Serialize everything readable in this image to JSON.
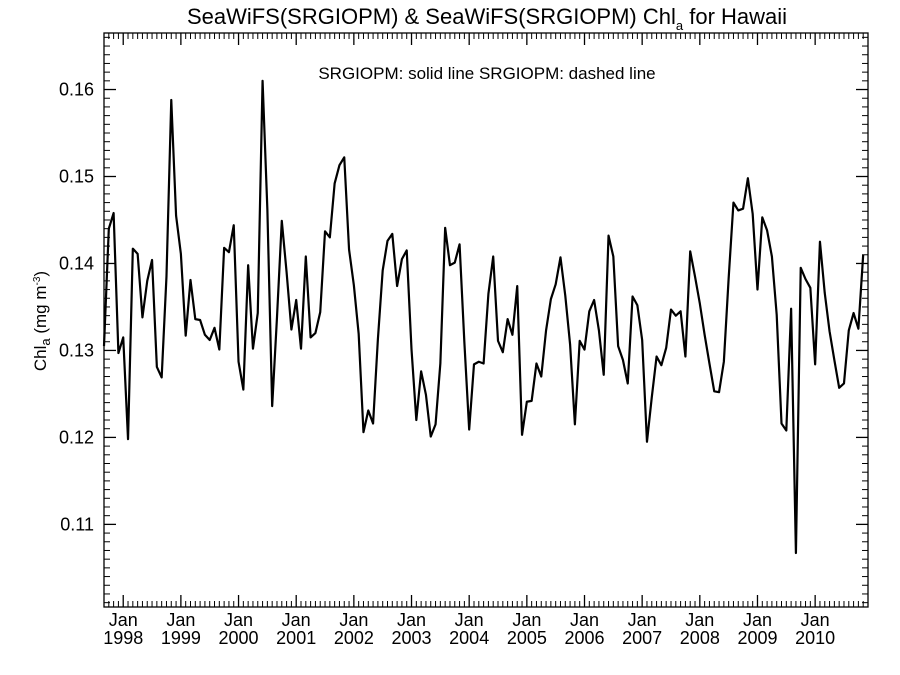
{
  "chart_data": {
    "type": "line",
    "title": {
      "main": "SeaWiFS(SRGIOPM) & SeaWiFS(SRGIOPM)  Chl",
      "subscript": "a",
      "suffix": " for Hawaii"
    },
    "legend_text": "SRGIOPM: solid line   SRGIOPM: dashed line",
    "ylabel": {
      "prefix": "Chl",
      "subscript": "a",
      "units": " (mg m",
      "superscript": "-3",
      "close": ")"
    },
    "ylim": [
      0.1005,
      0.1665
    ],
    "y_ticks": [
      0.11,
      0.12,
      0.13,
      0.14,
      0.15,
      0.16
    ],
    "y_tick_labels": [
      "0.11",
      "0.12",
      "0.13",
      "0.14",
      "0.15",
      "0.16"
    ],
    "xlim": [
      "1997-09",
      "2010-12"
    ],
    "x_ticks": [
      "1998-01",
      "1999-01",
      "2000-01",
      "2001-01",
      "2002-01",
      "2003-01",
      "2004-01",
      "2005-01",
      "2006-01",
      "2007-01",
      "2008-01",
      "2009-01",
      "2010-01"
    ],
    "x_tick_month_labels": [
      "Jan",
      "Jan",
      "Jan",
      "Jan",
      "Jan",
      "Jan",
      "Jan",
      "Jan",
      "Jan",
      "Jan",
      "Jan",
      "Jan",
      "Jan"
    ],
    "x_tick_year_labels": [
      "1998",
      "1999",
      "2000",
      "2001",
      "2002",
      "2003",
      "2004",
      "2005",
      "2006",
      "2007",
      "2008",
      "2009",
      "2010"
    ],
    "grid": false,
    "series": [
      {
        "style": "solid",
        "color": "#000000",
        "x_start": "1997-09",
        "step": "1 month",
        "values": [
          0.1305,
          0.144,
          0.1458,
          0.1297,
          0.1315,
          0.1198,
          0.1417,
          0.1411,
          0.1338,
          0.138,
          0.1404,
          0.1281,
          0.1269,
          0.1385,
          0.1588,
          0.1455,
          0.1411,
          0.1317,
          0.1381,
          0.1336,
          0.1335,
          0.1318,
          0.1312,
          0.1326,
          0.1301,
          0.1418,
          0.1413,
          0.1444,
          0.1287,
          0.1255,
          0.1398,
          0.1302,
          0.1343,
          0.161,
          0.1462,
          0.1236,
          0.1338,
          0.1449,
          0.139,
          0.1324,
          0.1358,
          0.1302,
          0.1408,
          0.1315,
          0.132,
          0.1344,
          0.1437,
          0.143,
          0.1492,
          0.1513,
          0.1522,
          0.1416,
          0.1375,
          0.1319,
          0.1206,
          0.1231,
          0.1216,
          0.1313,
          0.1392,
          0.1426,
          0.1434,
          0.1374,
          0.1405,
          0.1415,
          0.1301,
          0.122,
          0.1276,
          0.1249,
          0.1201,
          0.1215,
          0.1285,
          0.1441,
          0.1398,
          0.1401,
          0.1422,
          0.1309,
          0.1209,
          0.1284,
          0.1287,
          0.1285,
          0.1365,
          0.1408,
          0.1311,
          0.1298,
          0.1336,
          0.1318,
          0.1374,
          0.1203,
          0.1241,
          0.1242,
          0.1285,
          0.127,
          0.1323,
          0.1359,
          0.1376,
          0.1407,
          0.1363,
          0.1307,
          0.1215,
          0.1311,
          0.1301,
          0.1345,
          0.1358,
          0.1323,
          0.1272,
          0.1432,
          0.1408,
          0.1305,
          0.1289,
          0.1262,
          0.1362,
          0.1352,
          0.1312,
          0.1195,
          0.1246,
          0.1293,
          0.1283,
          0.1303,
          0.1347,
          0.134,
          0.1345,
          0.1293,
          0.1414,
          0.1385,
          0.1354,
          0.1318,
          0.1285,
          0.1253,
          0.1252,
          0.1287,
          0.1383,
          0.147,
          0.1461,
          0.1463,
          0.1498,
          0.1457,
          0.137,
          0.1453,
          0.1438,
          0.1408,
          0.1341,
          0.1216,
          0.1208,
          0.1348,
          0.1067,
          0.1395,
          0.1382,
          0.1372,
          0.1284,
          0.1425,
          0.1366,
          0.1322,
          0.1289,
          0.1257,
          0.1262,
          0.1323,
          0.1343,
          0.1325,
          0.141
        ]
      }
    ]
  }
}
